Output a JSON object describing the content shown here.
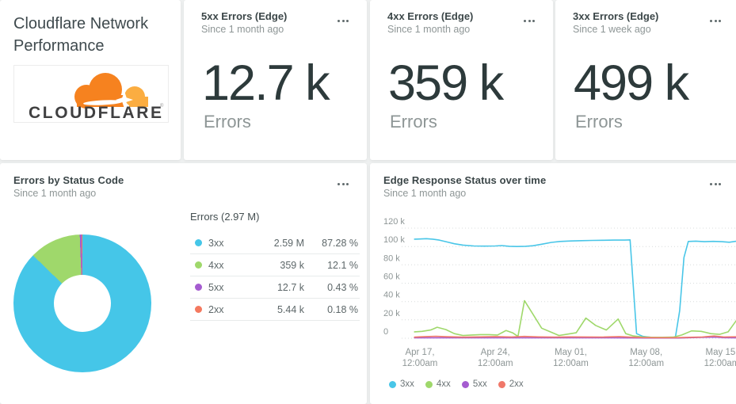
{
  "page_bg": "#eef0f0",
  "title_card": {
    "title": "Cloudflare Network Performance",
    "logo_wordmark": "CLOUDFLARE",
    "logo_mark": "®",
    "logo_orange": "#F6821F",
    "logo_light_orange": "#FBAD41",
    "logo_text_color": "#404041"
  },
  "kpis": [
    {
      "title": "5xx Errors (Edge)",
      "subtitle": "Since 1 month ago",
      "value": "12.7 k",
      "unit": "Errors"
    },
    {
      "title": "4xx Errors (Edge)",
      "subtitle": "Since 1 month ago",
      "value": "359 k",
      "unit": "Errors"
    },
    {
      "title": "3xx Errors (Edge)",
      "subtitle": "Since 1 week ago",
      "value": "499 k",
      "unit": "Errors"
    }
  ],
  "donut_card": {
    "title": "Errors by Status Code",
    "subtitle": "Since 1 month ago"
  },
  "line_card": {
    "title": "Edge Response Status over time",
    "subtitle": "Since 1 month ago"
  },
  "chart_data": [
    {
      "type": "pie",
      "title": "Errors by Status Code",
      "donut": true,
      "total_label": "Errors (2.97 M)",
      "slices": [
        {
          "label": "3xx",
          "value_display": "2.59 M",
          "percent_display": "87.28 %",
          "percent": 87.28,
          "color": "#45C6E8"
        },
        {
          "label": "4xx",
          "value_display": "359 k",
          "percent_display": "12.1 %",
          "percent": 12.1,
          "color": "#9FD86B"
        },
        {
          "label": "5xx",
          "value_display": "12.7 k",
          "percent_display": "0.43 %",
          "percent": 0.43,
          "color": "#A55CD0"
        },
        {
          "label": "2xx",
          "value_display": "5.44 k",
          "percent_display": "0.18 %",
          "percent": 0.18,
          "color": "#F4795F"
        }
      ]
    },
    {
      "type": "line",
      "title": "Edge Response Status over time",
      "xlabel": "",
      "ylabel": "",
      "grid": "dotted-horizontal",
      "legend_position": "bottom",
      "ylim": [
        0,
        130
      ],
      "y_unit": "k (thousands of responses)",
      "x_domain_days": [
        0.53,
        31.4
      ],
      "x_note": "days, 0 = Apr 15 12:00am",
      "y_ticks": [
        {
          "v": 0,
          "label": "0"
        },
        {
          "v": 20,
          "label": "20 k"
        },
        {
          "v": 40,
          "label": "40 k"
        },
        {
          "v": 60,
          "label": "60 k"
        },
        {
          "v": 80,
          "label": "80 k"
        },
        {
          "v": 100,
          "label": "100 k"
        },
        {
          "v": 120,
          "label": "120 k"
        }
      ],
      "x_ticks": [
        {
          "d": 2,
          "label": [
            "Apr 17,",
            "12:00am"
          ]
        },
        {
          "d": 9,
          "label": [
            "Apr 24,",
            "12:00am"
          ]
        },
        {
          "d": 16,
          "label": [
            "May 01,",
            "12:00am"
          ]
        },
        {
          "d": 23,
          "label": [
            "May 08,",
            "12:00am"
          ]
        },
        {
          "d": 30,
          "label": [
            "May 15,",
            "12:00am"
          ]
        }
      ],
      "series": [
        {
          "name": "3xx",
          "color": "#49C6E8",
          "points": [
            [
              1.5,
              108
            ],
            [
              2,
              108.2
            ],
            [
              2.6,
              108.5
            ],
            [
              3.2,
              108
            ],
            [
              3.8,
              107
            ],
            [
              4.5,
              105
            ],
            [
              5.2,
              103
            ],
            [
              6,
              101.5
            ],
            [
              7,
              100.6
            ],
            [
              8,
              100.4
            ],
            [
              9,
              100.6
            ],
            [
              9.6,
              101
            ],
            [
              10.3,
              100.2
            ],
            [
              11,
              100
            ],
            [
              11.8,
              100.2
            ],
            [
              12.5,
              100.8
            ],
            [
              13.3,
              102.5
            ],
            [
              14.2,
              104.5
            ],
            [
              15,
              105.5
            ],
            [
              16,
              106
            ],
            [
              17,
              106.4
            ],
            [
              18,
              106.6
            ],
            [
              19,
              106.8
            ],
            [
              20,
              107
            ],
            [
              21,
              107
            ],
            [
              21.5,
              107.2
            ],
            [
              22.1,
              5
            ],
            [
              22.7,
              2
            ],
            [
              23.4,
              1
            ],
            [
              24.2,
              0.8
            ],
            [
              25,
              0.6
            ],
            [
              25.7,
              0.5
            ],
            [
              26.1,
              30
            ],
            [
              26.5,
              88
            ],
            [
              26.9,
              105.5
            ],
            [
              27.6,
              105.8
            ],
            [
              28.4,
              105.2
            ],
            [
              29.2,
              105.6
            ],
            [
              30,
              105.2
            ],
            [
              30.7,
              104.6
            ],
            [
              31.4,
              105.8
            ]
          ]
        },
        {
          "name": "4xx",
          "color": "#9FD86B",
          "points": [
            [
              1.5,
              7
            ],
            [
              2.2,
              7.5
            ],
            [
              3,
              9
            ],
            [
              3.6,
              12
            ],
            [
              4.4,
              9.5
            ],
            [
              5.2,
              5
            ],
            [
              6,
              3
            ],
            [
              6.8,
              3.5
            ],
            [
              7.6,
              4
            ],
            [
              8.4,
              4
            ],
            [
              9.2,
              3.5
            ],
            [
              10,
              8.5
            ],
            [
              10.6,
              6
            ],
            [
              11.1,
              2
            ],
            [
              11.7,
              41
            ],
            [
              12.5,
              26
            ],
            [
              13.3,
              11
            ],
            [
              14.1,
              7
            ],
            [
              14.9,
              3
            ],
            [
              15.7,
              4.5
            ],
            [
              16.5,
              6
            ],
            [
              17.4,
              22
            ],
            [
              18.3,
              14
            ],
            [
              19.3,
              9
            ],
            [
              20.4,
              21
            ],
            [
              21.1,
              5
            ],
            [
              21.8,
              2.5
            ],
            [
              22.6,
              1.5
            ],
            [
              23.5,
              1
            ],
            [
              24.5,
              1
            ],
            [
              25.5,
              1.2
            ],
            [
              26.3,
              3.5
            ],
            [
              27.2,
              8
            ],
            [
              28.1,
              7.5
            ],
            [
              29,
              5
            ],
            [
              29.8,
              4.2
            ],
            [
              30.6,
              7
            ],
            [
              31.4,
              20
            ]
          ]
        },
        {
          "name": "5xx",
          "color": "#A55CD0",
          "points": [
            [
              1.5,
              0.4
            ],
            [
              5,
              0.5
            ],
            [
              10,
              0.4
            ],
            [
              15,
              0.5
            ],
            [
              20,
              0.4
            ],
            [
              23,
              0.3
            ],
            [
              26,
              0.3
            ],
            [
              28.6,
              1
            ],
            [
              29.4,
              1.2
            ],
            [
              30.2,
              0.6
            ],
            [
              31.4,
              0.5
            ]
          ]
        },
        {
          "name": "2xx",
          "color": "#F0786A",
          "points": [
            [
              1.5,
              1.2
            ],
            [
              2.5,
              1.8
            ],
            [
              3.5,
              2.2
            ],
            [
              4.5,
              1.6
            ],
            [
              6,
              1.2
            ],
            [
              7.5,
              1.5
            ],
            [
              9,
              1.8
            ],
            [
              10.5,
              1.4
            ],
            [
              11.7,
              2
            ],
            [
              13,
              1.5
            ],
            [
              14.5,
              1.2
            ],
            [
              16,
              1.5
            ],
            [
              17.5,
              1.4
            ],
            [
              19,
              1.3
            ],
            [
              20.5,
              1.8
            ],
            [
              21.5,
              1.2
            ],
            [
              22.5,
              0.8
            ],
            [
              24,
              0.6
            ],
            [
              25.5,
              0.6
            ],
            [
              27,
              1
            ],
            [
              28.2,
              1.4
            ],
            [
              29.3,
              2.4
            ],
            [
              30.2,
              1.4
            ],
            [
              31.4,
              1.6
            ]
          ]
        }
      ],
      "legend": [
        "3xx",
        "4xx",
        "5xx",
        "2xx"
      ]
    }
  ],
  "ui_colors": {
    "grid_line": "#d8dcdc",
    "axis_text": "#8e9696",
    "menu_dots": "#5f6a6c"
  }
}
